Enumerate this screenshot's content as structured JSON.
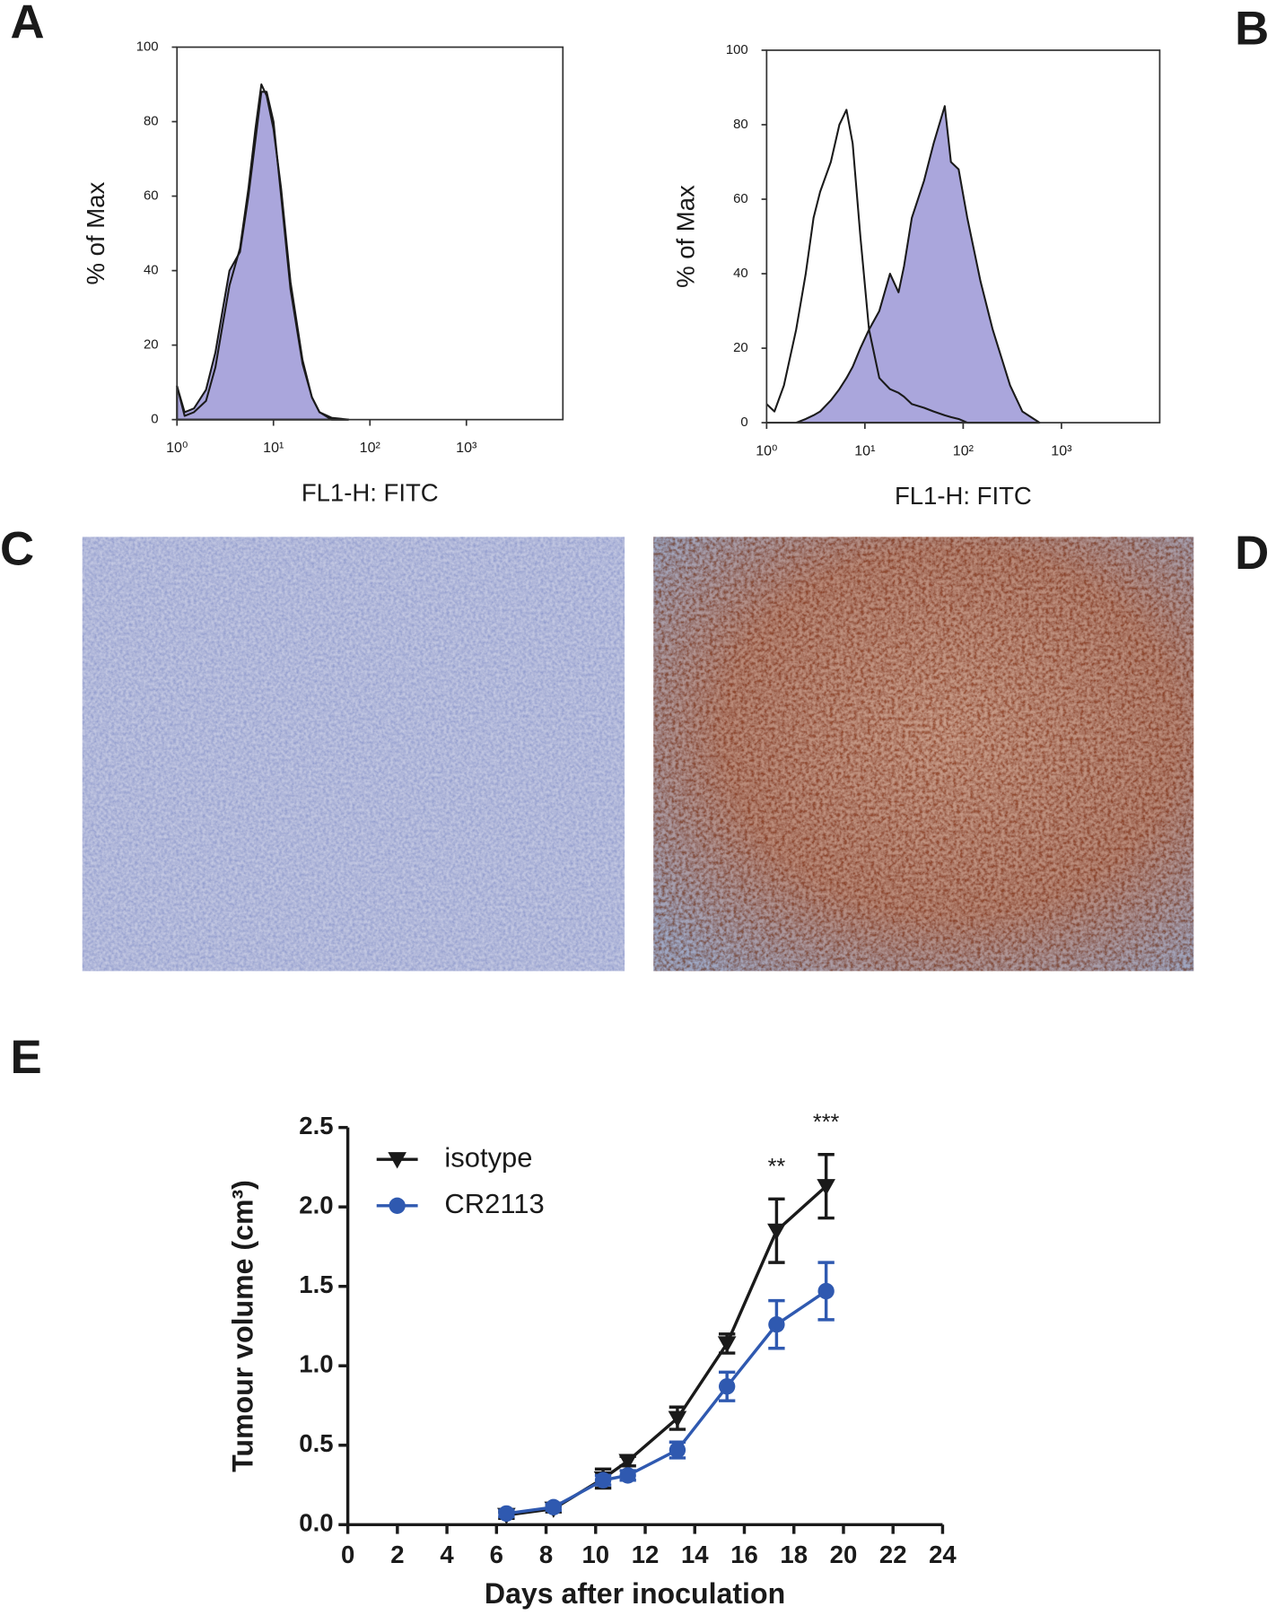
{
  "panel_labels": [
    "A",
    "B",
    "C",
    "D",
    "E"
  ],
  "chart_data": [
    {
      "type": "histogram-log",
      "xscale": "log",
      "ylabel": "% of Max",
      "xlabel": "FL1-H: FITC",
      "xlim": [
        1,
        10000
      ],
      "xticks": [
        {
          "value": 1,
          "label": "10⁰"
        },
        {
          "value": 10,
          "label": "10¹"
        },
        {
          "value": 100,
          "label": "10²"
        },
        {
          "value": 1000,
          "label": "10³"
        }
      ],
      "ylim": [
        0,
        100
      ],
      "yticks": [
        0,
        20,
        40,
        60,
        80,
        100
      ],
      "x": [
        1,
        1.2,
        1.5,
        2,
        2.5,
        3,
        3.5,
        4.5,
        5.5,
        6.5,
        7.5,
        8.5,
        10,
        12,
        15,
        20,
        25,
        30,
        40,
        60
      ],
      "series": [
        {
          "color": "#1a1a1a",
          "fill": "#aaa6dc",
          "values": [
            9,
            2,
            3,
            8,
            18,
            30,
            40,
            45,
            60,
            75,
            88,
            88,
            80,
            60,
            35,
            15,
            6,
            2,
            0.5,
            0
          ]
        },
        {
          "color": "#1a1a1a",
          "fill": null,
          "values": [
            9,
            1,
            2,
            5,
            14,
            26,
            36,
            46,
            62,
            78,
            90,
            87,
            78,
            62,
            37,
            16,
            6,
            2,
            0,
            0
          ]
        }
      ]
    },
    {
      "type": "histogram-log",
      "xscale": "log",
      "ylabel": "% of Max",
      "xlabel": "FL1-H: FITC",
      "xlim": [
        1,
        10000
      ],
      "xticks": [
        {
          "value": 1,
          "label": "10⁰"
        },
        {
          "value": 10,
          "label": "10¹"
        },
        {
          "value": 100,
          "label": "10²"
        },
        {
          "value": 1000,
          "label": "10³"
        }
      ],
      "ylim": [
        0,
        100
      ],
      "yticks": [
        0,
        20,
        40,
        60,
        80,
        100
      ],
      "x": [
        1,
        1.2,
        1.5,
        2,
        2.5,
        3,
        3.5,
        4.5,
        5.5,
        6.5,
        7.5,
        9,
        11,
        14,
        18,
        22,
        25,
        30,
        40,
        50,
        65,
        75,
        90,
        110,
        150,
        200,
        300,
        400,
        600
      ],
      "series": [
        {
          "color": "#1a1a1a",
          "fill": "#aaa6dc",
          "values": [
            0,
            0,
            0,
            0,
            1,
            2,
            3,
            6,
            9,
            12,
            15,
            20,
            25,
            30,
            40,
            35,
            42,
            55,
            65,
            75,
            85,
            70,
            68,
            55,
            38,
            25,
            10,
            3,
            0
          ]
        },
        {
          "color": "#1a1a1a",
          "fill": null,
          "values": [
            5,
            3,
            10,
            25,
            40,
            55,
            62,
            70,
            80,
            84,
            75,
            50,
            25,
            12,
            9,
            8,
            7,
            5,
            4,
            3,
            2,
            1.5,
            1,
            0,
            0,
            0,
            0,
            0,
            0
          ]
        }
      ]
    },
    {
      "type": "line-errorbar",
      "xlabel": "Days after inoculation",
      "ylabel": "Tumour volume (cm³)",
      "xlim": [
        0,
        24
      ],
      "xticks": [
        0,
        2,
        4,
        6,
        8,
        10,
        12,
        14,
        16,
        18,
        20,
        22,
        24
      ],
      "ylim": [
        0,
        2.5
      ],
      "yticks": [
        {
          "value": 0,
          "label": "0.0"
        },
        0.5,
        {
          "value": 1,
          "label": "1.0"
        },
        1.5,
        {
          "value": 2,
          "label": "2.0"
        },
        2.5
      ],
      "x": [
        6.4,
        8.3,
        10.3,
        11.3,
        13.3,
        15.3,
        17.3,
        19.3
      ],
      "series": [
        {
          "name": "isotype",
          "color": "#1a1a1a",
          "marker": "triangle-down",
          "values": [
            0.06,
            0.1,
            0.29,
            0.4,
            0.67,
            1.14,
            1.85,
            2.13
          ],
          "errors": [
            0.02,
            0.02,
            0.06,
            0.03,
            0.07,
            0.06,
            0.2,
            0.2
          ]
        },
        {
          "name": "CR2113",
          "color": "#2f59b0",
          "marker": "circle",
          "values": [
            0.07,
            0.11,
            0.28,
            0.31,
            0.47,
            0.87,
            1.26,
            1.47
          ],
          "errors": [
            0.02,
            0.02,
            0.03,
            0.03,
            0.05,
            0.09,
            0.15,
            0.18
          ]
        }
      ],
      "annotations": [
        {
          "text": "**",
          "x": 17.3
        },
        {
          "text": "***",
          "x": 19.3
        }
      ]
    }
  ]
}
